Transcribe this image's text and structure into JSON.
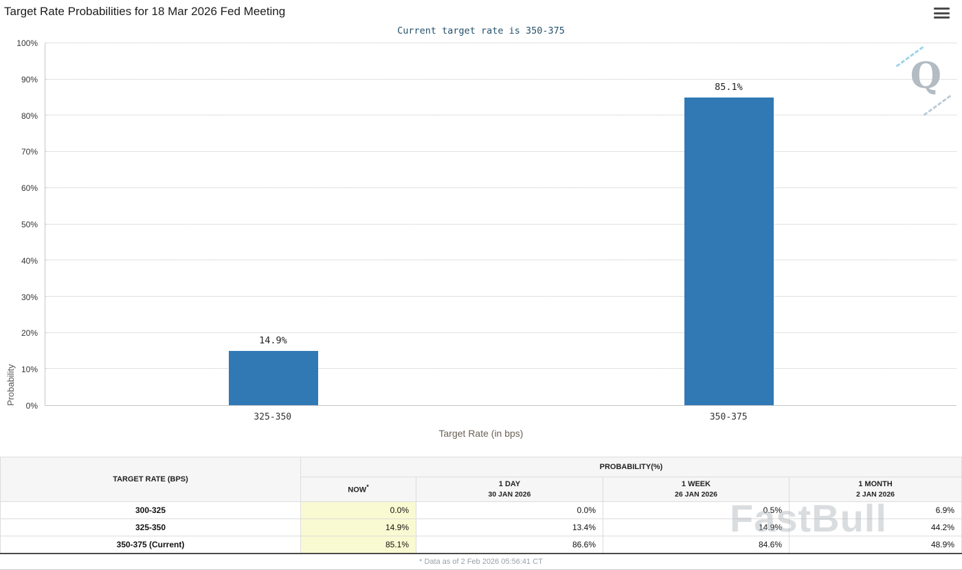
{
  "page": {
    "title": "Target Rate Probabilities for 18 Mar 2026 Fed Meeting",
    "menu_icon": "hamburger-icon",
    "footnote": "* Data as of 2 Feb 2026 05:56:41 CT",
    "watermark_text": "FastBull",
    "logo_watermark_letter": "Q"
  },
  "chart_data": {
    "type": "bar",
    "title": "Current target rate is 350-375",
    "categories": [
      "325-350",
      "350-375"
    ],
    "values": [
      14.9,
      85.1
    ],
    "value_labels": [
      "14.9%",
      "85.1%"
    ],
    "xlabel": "Target Rate (in bps)",
    "ylabel": "Probability",
    "ylim": [
      0,
      100
    ],
    "ytick_labels": [
      "0%",
      "10%",
      "20%",
      "30%",
      "40%",
      "50%",
      "60%",
      "70%",
      "80%",
      "90%",
      "100%"
    ],
    "grid": "dotted-horizontal",
    "legend": "none",
    "bar_color": "#3079b5"
  },
  "colors": {
    "bar": "#3079b5",
    "now_column_background": "#fafad2",
    "chart_title_text": "#25506b",
    "header_background": "#f6f6f6"
  },
  "table": {
    "corner_header": "TARGET RATE (BPS)",
    "group_header": "PROBABILITY(%)",
    "columns": [
      {
        "label": "NOW",
        "note_marker": "*",
        "sub": ""
      },
      {
        "label": "1 DAY",
        "sub": "30 JAN 2026"
      },
      {
        "label": "1 WEEK",
        "sub": "26 JAN 2026"
      },
      {
        "label": "1 MONTH",
        "sub": "2 JAN 2026"
      }
    ],
    "rows": [
      {
        "rate": "300-325",
        "values": [
          "0.0%",
          "0.0%",
          "0.5%",
          "6.9%"
        ]
      },
      {
        "rate": "325-350",
        "values": [
          "14.9%",
          "13.4%",
          "14.9%",
          "44.2%"
        ]
      },
      {
        "rate": "350-375 (Current)",
        "values": [
          "85.1%",
          "86.6%",
          "84.6%",
          "48.9%"
        ]
      }
    ]
  }
}
